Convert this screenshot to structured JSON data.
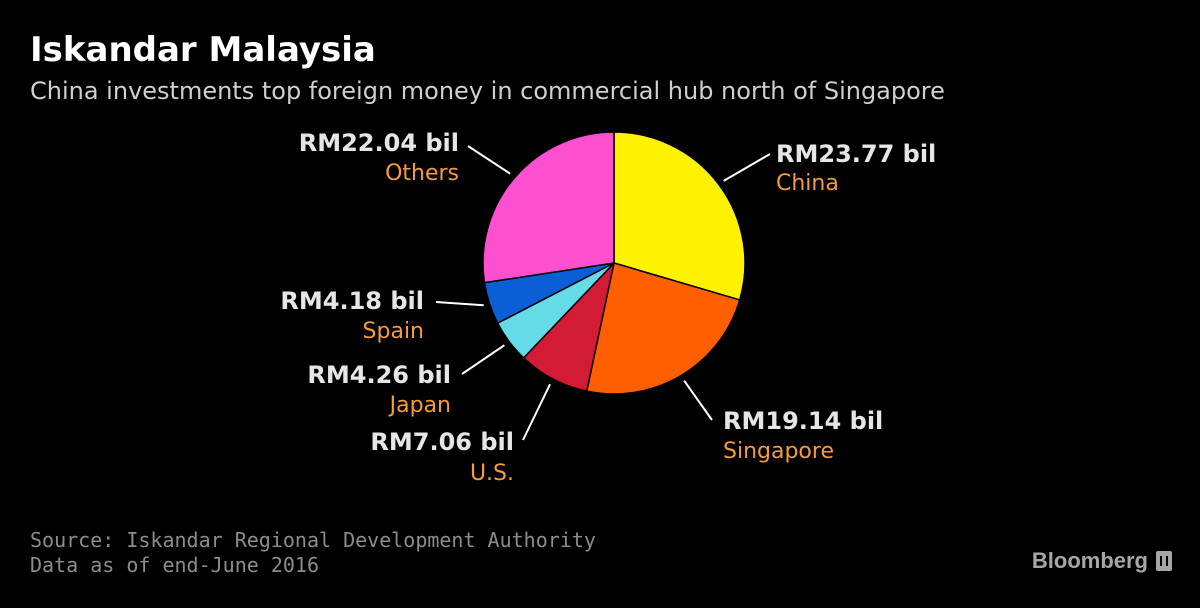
{
  "header": {
    "title": "Iskandar Malaysia",
    "subtitle": "China investments top foreign money in commercial hub north of Singapore"
  },
  "chart_data": {
    "type": "pie",
    "title": "Iskandar Malaysia",
    "subtitle": "China investments top foreign money in commercial hub north of Singapore",
    "slices": [
      {
        "category": "China",
        "value": 23.77,
        "label": "RM23.77 bil",
        "color": "#fff200"
      },
      {
        "category": "Singapore",
        "value": 19.14,
        "label": "RM19.14 bil",
        "color": "#ff5f00"
      },
      {
        "category": "U.S.",
        "value": 7.06,
        "label": "RM7.06 bil",
        "color": "#d31b35"
      },
      {
        "category": "Japan",
        "value": 4.26,
        "label": "RM4.26 bil",
        "color": "#66dbe8"
      },
      {
        "category": "Spain",
        "value": 4.18,
        "label": "RM4.18 bil",
        "color": "#0a5fd6"
      },
      {
        "category": "Others",
        "value": 22.04,
        "label": "RM22.04 bil",
        "color": "#ff4fd1"
      }
    ],
    "start": "12 o'clock",
    "direction": "clockwise",
    "legend": "none",
    "label_color": "#e6e6e6",
    "category_color": "#f59b3c"
  },
  "footer": {
    "source": "Source: Iskandar Regional Development Authority",
    "note": "Data as of end-June 2016",
    "brand": "Bloomberg"
  }
}
